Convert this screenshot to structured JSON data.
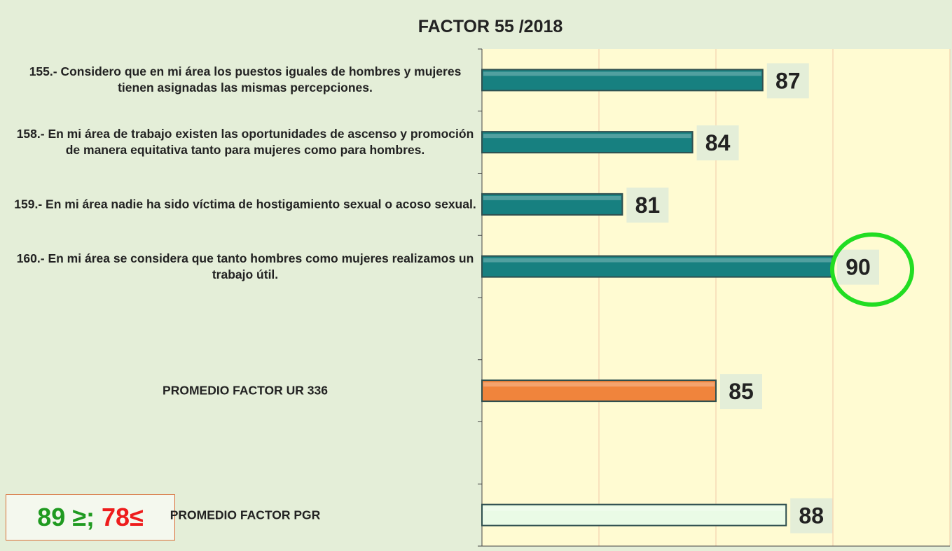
{
  "chart_data": {
    "type": "bar",
    "orientation": "horizontal",
    "title": "FACTOR 55 /2018",
    "categories": [
      "155.- Considero que en mi área los puestos iguales de hombres y mujeres tienen asignadas las mismas percepciones.",
      "158.- En mi área de trabajo existen las oportunidades de ascenso y promoción de manera equitativa tanto para mujeres como para hombres.",
      "159.- En mi área nadie ha sido víctima de hostigamiento sexual o acoso sexual.",
      "160.- En mi área se considera que tanto hombres como mujeres realizamos un trabajo útil.",
      null,
      "PROMEDIO FACTOR UR 336",
      null,
      "PROMEDIO FACTOR PGR"
    ],
    "values": [
      87,
      84,
      81,
      90,
      null,
      85,
      null,
      88
    ],
    "colors": [
      "#178080",
      "#178080",
      "#178080",
      "#178080",
      null,
      "#f0843c",
      null,
      "#eafbe6"
    ],
    "xlim": [
      75,
      95
    ],
    "xticks": [
      75,
      80,
      85,
      90,
      95
    ],
    "grid": true,
    "annotations": [
      "89 ≥;",
      "78≤"
    ]
  }
}
